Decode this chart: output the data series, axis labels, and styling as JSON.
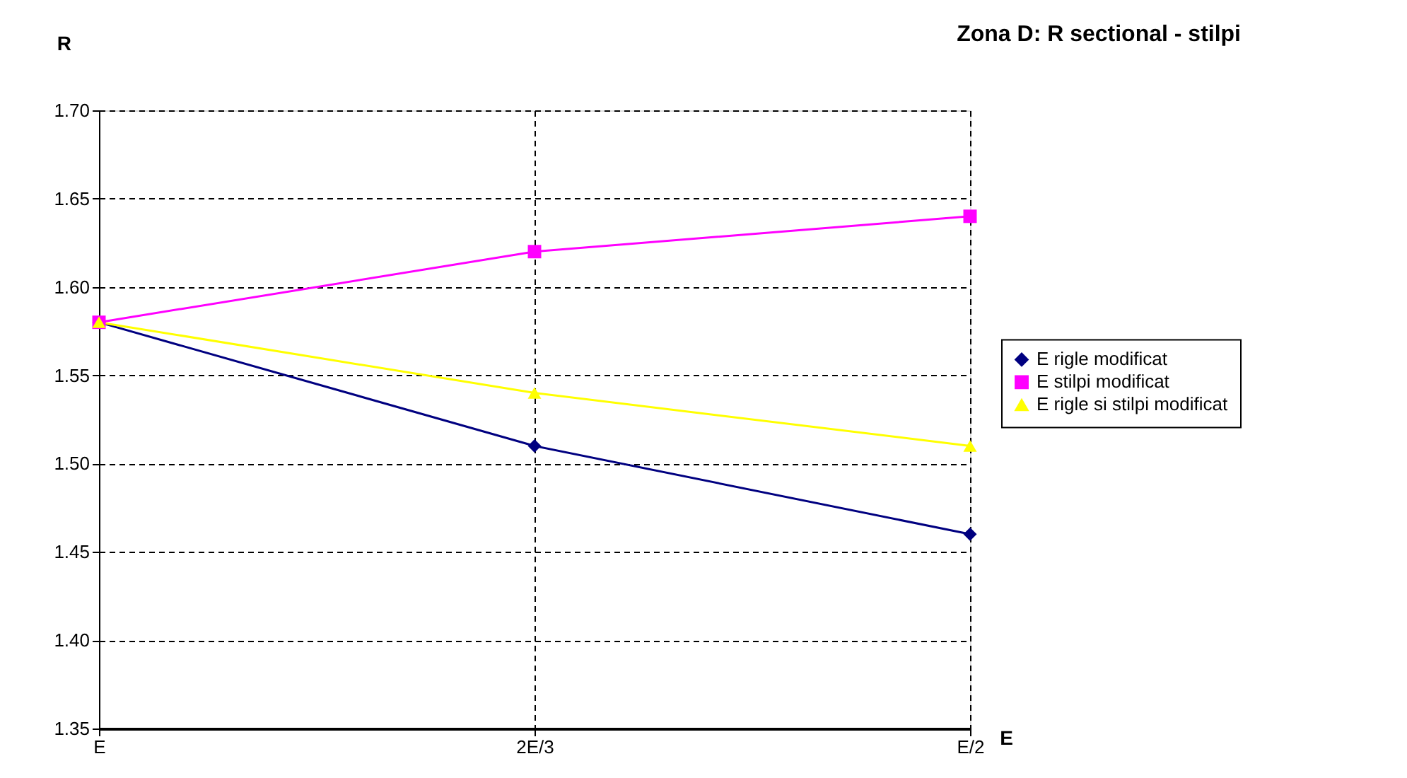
{
  "chart_data": {
    "type": "line",
    "title": "Zona D: R sectional - stilpi",
    "xlabel": "E",
    "ylabel": "R",
    "categories": [
      "E",
      "2E/3",
      "E/2"
    ],
    "series": [
      {
        "name": "E rigle modificat",
        "color": "#000080",
        "marker": "diamond",
        "values": [
          1.58,
          1.51,
          1.46
        ]
      },
      {
        "name": "E stilpi modificat",
        "color": "#ff00ff",
        "marker": "square",
        "values": [
          1.58,
          1.62,
          1.64
        ]
      },
      {
        "name": "E rigle si stilpi modificat",
        "color": "#ffff00",
        "marker": "triangle",
        "values": [
          1.58,
          1.54,
          1.51
        ]
      }
    ],
    "ylim": [
      1.35,
      1.7
    ],
    "yticks": [
      1.35,
      {
        "value": 1.4,
        "label": "1.40"
      },
      1.45,
      {
        "value": 1.5,
        "label": "1.50"
      },
      1.55,
      {
        "value": 1.6,
        "label": "1.60"
      },
      1.65,
      {
        "value": 1.7,
        "label": "1.70"
      }
    ],
    "grid": true,
    "legend": "right",
    "line_style": "solid"
  }
}
